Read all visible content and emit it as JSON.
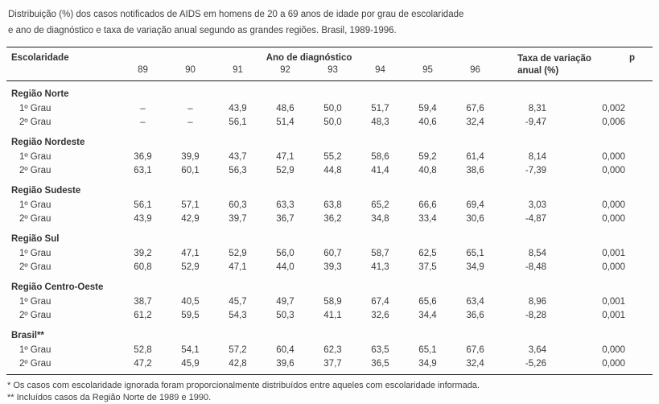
{
  "colors": {
    "text": "#3a3a3a",
    "rule": "#1f1f1f",
    "background": "#fdfdfd"
  },
  "title": {
    "line1": "Distribuição (%) dos casos notificados de AIDS em homens de 20 a 69 anos de idade por grau de escolaridade",
    "line2": "e ano de diagnóstico e taxa de variação anual segundo as grandes regiões. Brasil, 1989-1996."
  },
  "table": {
    "col_escolaridade": "Escolaridade",
    "col_year_group": "Ano de diagnóstico",
    "years": [
      "89",
      "90",
      "91",
      "92",
      "93",
      "94",
      "95",
      "96"
    ],
    "col_taxa": "Taxa de variação anual (%)",
    "col_p": "p",
    "groups": [
      {
        "region": "Região Norte",
        "rows": [
          {
            "grade": "1º Grau",
            "values": [
              "–",
              "–",
              "43,9",
              "48,6",
              "50,0",
              "51,7",
              "59,4",
              "67,6"
            ],
            "taxa": "8,31",
            "p": "0,002"
          },
          {
            "grade": "2º Grau",
            "values": [
              "–",
              "–",
              "56,1",
              "51,4",
              "50,0",
              "48,3",
              "40,6",
              "32,4"
            ],
            "taxa": "-9,47",
            "p": "0,006"
          }
        ]
      },
      {
        "region": "Região Nordeste",
        "rows": [
          {
            "grade": "1º Grau",
            "values": [
              "36,9",
              "39,9",
              "43,7",
              "47,1",
              "55,2",
              "58,6",
              "59,2",
              "61,4"
            ],
            "taxa": "8,14",
            "p": "0,000"
          },
          {
            "grade": "2º Grau",
            "values": [
              "63,1",
              "60,1",
              "56,3",
              "52,9",
              "44,8",
              "41,4",
              "40,8",
              "38,6"
            ],
            "taxa": "-7,39",
            "p": "0,000"
          }
        ]
      },
      {
        "region": "Região Sudeste",
        "rows": [
          {
            "grade": "1º Grau",
            "values": [
              "56,1",
              "57,1",
              "60,3",
              "63,3",
              "63,8",
              "65,2",
              "66,6",
              "69,4"
            ],
            "taxa": "3,03",
            "p": "0,000"
          },
          {
            "grade": "2º Grau",
            "values": [
              "43,9",
              "42,9",
              "39,7",
              "36,7",
              "36,2",
              "34,8",
              "33,4",
              "30,6"
            ],
            "taxa": "-4,87",
            "p": "0,000"
          }
        ]
      },
      {
        "region": "Região Sul",
        "rows": [
          {
            "grade": "1º Grau",
            "values": [
              "39,2",
              "47,1",
              "52,9",
              "56,0",
              "60,7",
              "58,7",
              "62,5",
              "65,1"
            ],
            "taxa": "8,54",
            "p": "0,001"
          },
          {
            "grade": "2º Grau",
            "values": [
              "60,8",
              "52,9",
              "47,1",
              "44,0",
              "39,3",
              "41,3",
              "37,5",
              "34,9"
            ],
            "taxa": "-8,48",
            "p": "0,000"
          }
        ]
      },
      {
        "region": "Região Centro-Oeste",
        "rows": [
          {
            "grade": "1º Grau",
            "values": [
              "38,7",
              "40,5",
              "45,7",
              "49,7",
              "58,9",
              "67,4",
              "65,6",
              "63,4"
            ],
            "taxa": "8,96",
            "p": "0,001"
          },
          {
            "grade": "2º Grau",
            "values": [
              "61,2",
              "59,5",
              "54,3",
              "50,3",
              "41,1",
              "32,6",
              "34,4",
              "36,6"
            ],
            "taxa": "-8,28",
            "p": "0,001"
          }
        ]
      },
      {
        "region": "Brasil**",
        "rows": [
          {
            "grade": "1º Grau",
            "values": [
              "52,8",
              "54,1",
              "57,2",
              "60,4",
              "62,3",
              "63,5",
              "65,1",
              "67,6"
            ],
            "taxa": "3,64",
            "p": "0,000"
          },
          {
            "grade": "2º Grau",
            "values": [
              "47,2",
              "45,9",
              "42,8",
              "39,6",
              "37,7",
              "36,5",
              "34,9",
              "32,4"
            ],
            "taxa": "-5,26",
            "p": "0,000"
          }
        ]
      }
    ]
  },
  "footnotes": {
    "note1": "* Os casos com escolaridade ignorada foram proporcionalmente distribuídos entre aqueles com escolaridade informada.",
    "note2": "** Incluídos casos da Região Norte de 1989 e 1990."
  }
}
